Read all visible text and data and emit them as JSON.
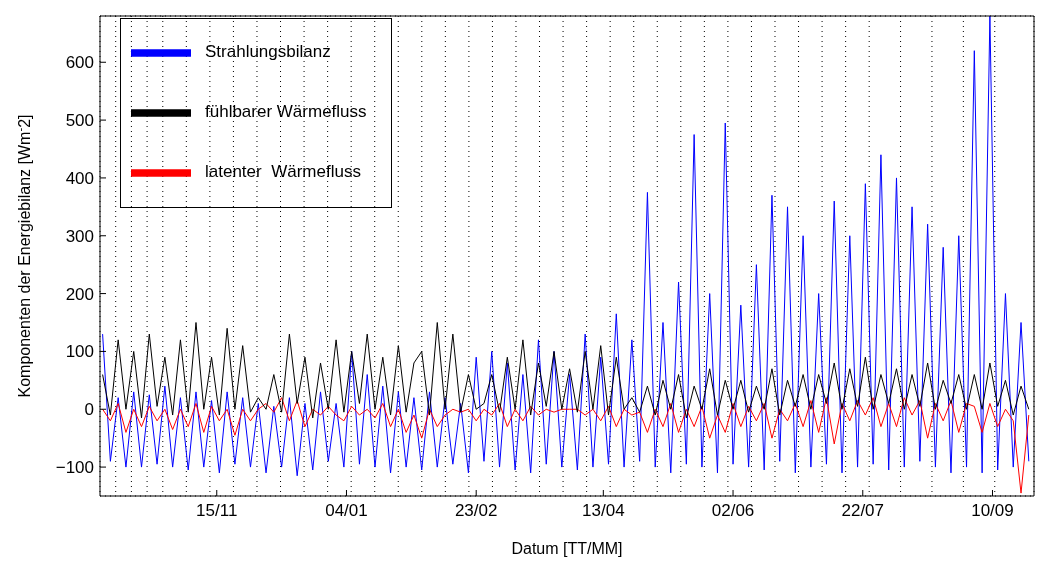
{
  "chart_data": {
    "type": "line",
    "xlabel": "Datum [TT/MM]",
    "ylabel": "Komponenten der Energiebilanz [Wm$^{-}$2]",
    "x": [
      "2001-10-02",
      "2001-10-05",
      "2001-10-08",
      "2001-10-11",
      "2001-10-14",
      "2001-10-17",
      "2001-10-20",
      "2001-10-23",
      "2001-10-26",
      "2001-10-29",
      "2001-11-01",
      "2001-11-04",
      "2001-11-07",
      "2001-11-10",
      "2001-11-13",
      "2001-11-16",
      "2001-11-19",
      "2001-11-22",
      "2001-11-25",
      "2001-11-28",
      "2001-12-01",
      "2001-12-04",
      "2001-12-07",
      "2001-12-10",
      "2001-12-13",
      "2001-12-16",
      "2001-12-19",
      "2001-12-22",
      "2001-12-25",
      "2001-12-28",
      "2001-12-31",
      "2002-01-03",
      "2002-01-06",
      "2002-01-09",
      "2002-01-12",
      "2002-01-15",
      "2002-01-18",
      "2002-01-21",
      "2002-01-24",
      "2002-01-27",
      "2002-01-30",
      "2002-02-02",
      "2002-02-05",
      "2002-02-08",
      "2002-02-11",
      "2002-02-14",
      "2002-02-17",
      "2002-02-20",
      "2002-02-23",
      "2002-02-26",
      "2002-03-01",
      "2002-03-04",
      "2002-03-07",
      "2002-03-10",
      "2002-03-13",
      "2002-03-16",
      "2002-03-19",
      "2002-03-22",
      "2002-03-25",
      "2002-03-28",
      "2002-03-31",
      "2002-04-03",
      "2002-04-06",
      "2002-04-09",
      "2002-04-12",
      "2002-04-15",
      "2002-04-18",
      "2002-04-21",
      "2002-04-24",
      "2002-04-27",
      "2002-04-30",
      "2002-05-03",
      "2002-05-06",
      "2002-05-09",
      "2002-05-12",
      "2002-05-15",
      "2002-05-18",
      "2002-05-21",
      "2002-05-24",
      "2002-05-27",
      "2002-05-30",
      "2002-06-02",
      "2002-06-05",
      "2002-06-08",
      "2002-06-11",
      "2002-06-14",
      "2002-06-17",
      "2002-06-20",
      "2002-06-23",
      "2002-06-26",
      "2002-06-29",
      "2002-07-02",
      "2002-07-05",
      "2002-07-08",
      "2002-07-11",
      "2002-07-14",
      "2002-07-17",
      "2002-07-20",
      "2002-07-23",
      "2002-07-26",
      "2002-07-29",
      "2002-08-01",
      "2002-08-04",
      "2002-08-07",
      "2002-08-10",
      "2002-08-13",
      "2002-08-16",
      "2002-08-19",
      "2002-08-22",
      "2002-08-25",
      "2002-08-28",
      "2002-08-31",
      "2002-09-03",
      "2002-09-06",
      "2002-09-09",
      "2002-09-12",
      "2002-09-15",
      "2002-09-18",
      "2002-09-21",
      "2002-09-24"
    ],
    "series": [
      {
        "name": "Strahlungsbilanz",
        "color": "#0000ff",
        "values": [
          130,
          -90,
          20,
          -100,
          30,
          -100,
          25,
          -95,
          40,
          -100,
          20,
          -105,
          30,
          -100,
          15,
          -110,
          30,
          -95,
          20,
          -100,
          10,
          -110,
          5,
          -100,
          20,
          -115,
          10,
          -105,
          30,
          -90,
          10,
          -100,
          100,
          -95,
          60,
          -100,
          40,
          -110,
          30,
          -100,
          20,
          -105,
          30,
          -100,
          20,
          -95,
          10,
          -110,
          90,
          -90,
          100,
          -100,
          80,
          -105,
          60,
          -110,
          120,
          -95,
          100,
          -100,
          60,
          -105,
          130,
          -100,
          90,
          -95,
          165,
          -100,
          120,
          -90,
          375,
          -100,
          150,
          -110,
          220,
          -95,
          475,
          -100,
          200,
          -110,
          495,
          -95,
          180,
          -100,
          250,
          -105,
          370,
          -90,
          350,
          -110,
          300,
          -100,
          200,
          -95,
          360,
          -110,
          300,
          -100,
          390,
          -95,
          440,
          -105,
          400,
          -100,
          350,
          -90,
          320,
          -100,
          280,
          -110,
          300,
          -100,
          620,
          -110,
          680,
          -105,
          200,
          -100,
          150,
          -90
        ]
      },
      {
        "name": "latenter  Wärmefluss",
        "color": "#ff0000",
        "values": [
          0,
          -20,
          10,
          -40,
          0,
          -30,
          5,
          -20,
          0,
          -35,
          0,
          -30,
          10,
          -40,
          5,
          -20,
          0,
          -45,
          0,
          -20,
          0,
          10,
          -5,
          20,
          -20,
          15,
          -30,
          0,
          -10,
          5,
          -10,
          -20,
          5,
          -10,
          0,
          -15,
          10,
          -30,
          0,
          -40,
          -10,
          -50,
          0,
          -30,
          -10,
          0,
          -5,
          0,
          -20,
          0,
          -10,
          10,
          -30,
          0,
          -20,
          5,
          -10,
          0,
          -5,
          0,
          0,
          0,
          -10,
          0,
          -20,
          5,
          -30,
          0,
          -10,
          -5,
          -40,
          0,
          -30,
          10,
          -40,
          0,
          -30,
          5,
          -50,
          -10,
          -40,
          10,
          -30,
          5,
          -20,
          10,
          -50,
          0,
          -20,
          10,
          -30,
          15,
          -40,
          20,
          -60,
          10,
          -20,
          15,
          -10,
          20,
          -30,
          10,
          -30,
          20,
          -10,
          15,
          -50,
          10,
          -20,
          15,
          -40,
          10,
          5,
          -40,
          10,
          -30,
          0,
          -20,
          -145,
          -10
        ]
      },
      {
        "name": "fühlbarer Wärmefluss",
        "color": "#000000",
        "values": [
          60,
          -10,
          120,
          0,
          100,
          -15,
          130,
          5,
          90,
          -10,
          120,
          -5,
          150,
          0,
          90,
          -10,
          140,
          0,
          110,
          -5,
          20,
          0,
          60,
          -5,
          130,
          10,
          90,
          -15,
          80,
          0,
          120,
          -5,
          100,
          10,
          130,
          0,
          90,
          -10,
          110,
          -5,
          80,
          100,
          -10,
          150,
          0,
          130,
          -5,
          60,
          0,
          10,
          60,
          -5,
          90,
          0,
          120,
          -10,
          80,
          5,
          100,
          0,
          70,
          -5,
          100,
          0,
          110,
          -10,
          90,
          0,
          20,
          -5,
          40,
          -10,
          50,
          0,
          60,
          -15,
          40,
          0,
          70,
          -10,
          50,
          0,
          50,
          -5,
          40,
          0,
          70,
          -10,
          50,
          5,
          60,
          0,
          60,
          10,
          80,
          0,
          70,
          5,
          90,
          0,
          60,
          10,
          70,
          0,
          60,
          5,
          80,
          0,
          50,
          10,
          60,
          0,
          60,
          0,
          80,
          5,
          50,
          -10,
          40,
          0
        ]
      }
    ],
    "xlim": [
      "2001-10-01",
      "2002-09-26"
    ],
    "xticks": [
      {
        "value": "2001-11-15",
        "label": "15/11"
      },
      {
        "value": "2002-01-04",
        "label": "04/01"
      },
      {
        "value": "2002-02-23",
        "label": "23/02"
      },
      {
        "value": "2002-04-13",
        "label": "13/04"
      },
      {
        "value": "2002-06-02",
        "label": "02/06"
      },
      {
        "value": "2002-07-22",
        "label": "22/07"
      },
      {
        "value": "2002-09-10",
        "label": "10/09"
      }
    ],
    "ylim": [
      -150,
      680
    ],
    "yticks": [
      -100,
      0,
      100,
      200,
      300,
      400,
      500,
      600
    ],
    "grid": true,
    "legend": "top left"
  }
}
